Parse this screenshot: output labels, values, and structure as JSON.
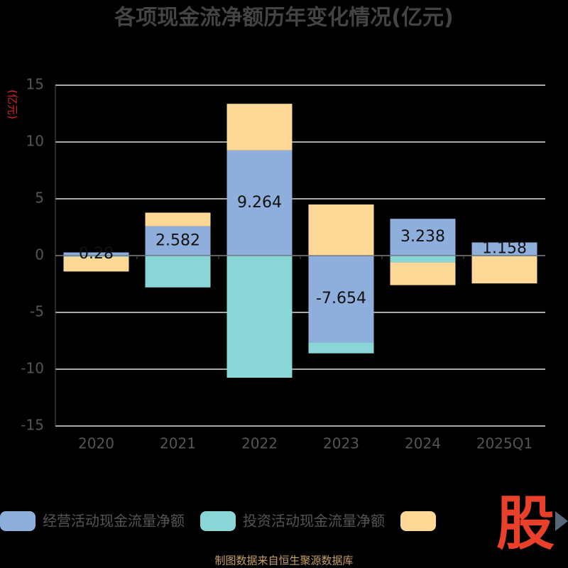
{
  "chart_data": {
    "type": "bar",
    "stacked": true,
    "title": "各项现金流净额历年变化情况(亿元)",
    "y_unit": "(亿元)",
    "categories": [
      "2020",
      "2021",
      "2022",
      "2023",
      "2024",
      "2025Q1"
    ],
    "series": [
      {
        "name": "经营活动现金流量净额",
        "color": "#8eaedc",
        "values": [
          0.28,
          2.582,
          9.264,
          -7.654,
          3.238,
          1.158
        ],
        "show_labels": true
      },
      {
        "name": "投资活动现金流量净额",
        "color": "#8ad6d6",
        "values": [
          -0.1,
          -2.8,
          -10.75,
          -0.95,
          -0.6,
          -0.05
        ]
      },
      {
        "color": "#fed896",
        "values": [
          -1.3,
          1.2,
          4.1,
          4.5,
          -2.0,
          -2.4
        ]
      }
    ],
    "ylim": [
      -15,
      15
    ],
    "yticks": [
      -15,
      -10,
      -5,
      0,
      5,
      10,
      15
    ],
    "grid": true,
    "logo": "股",
    "source": "制图数据来自恒生聚源数据库"
  }
}
